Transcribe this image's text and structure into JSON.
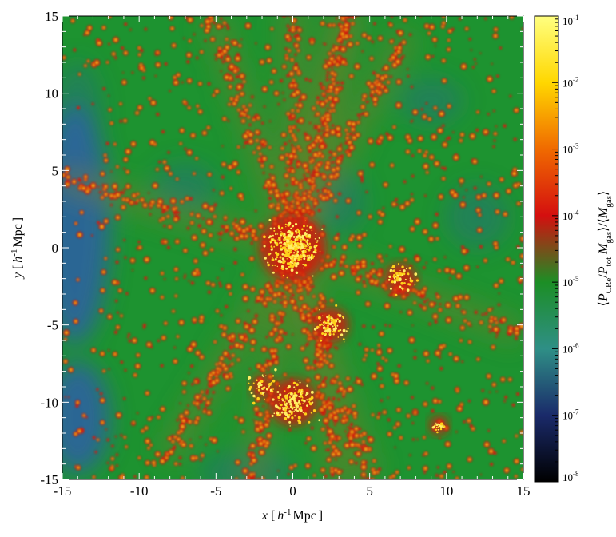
{
  "chart_data": {
    "type": "heatmap",
    "title": "",
    "xlabel": {
      "var": "x",
      "open": "[",
      "h": "h",
      "hsup": "-1",
      "unit": "Mpc",
      "close": "]"
    },
    "ylabel": {
      "var": "y",
      "open": "[",
      "h": "h",
      "hsup": "-1",
      "unit": "Mpc",
      "close": "]"
    },
    "xlim": [
      -15,
      15
    ],
    "ylim": [
      -15,
      15
    ],
    "xticks": [
      -15,
      -10,
      -5,
      0,
      5,
      10,
      15
    ],
    "yticks": [
      -15,
      -10,
      -5,
      0,
      5,
      10,
      15
    ],
    "xtick_labels": [
      "-15",
      "-10",
      "-5",
      "0",
      "5",
      "10",
      "15"
    ],
    "ytick_labels": [
      "-15",
      "-10",
      "-5",
      "0",
      "5",
      "10",
      "15"
    ],
    "colorbar": {
      "scale": "log",
      "range": [
        1e-08,
        0.1
      ],
      "ticks": [
        {
          "value": 0.1,
          "base": "10",
          "exp": "-1"
        },
        {
          "value": 0.01,
          "base": "10",
          "exp": "-2"
        },
        {
          "value": 0.001,
          "base": "10",
          "exp": "-3"
        },
        {
          "value": 0.0001,
          "base": "10",
          "exp": "-4"
        },
        {
          "value": 1e-05,
          "base": "10",
          "exp": "-5"
        },
        {
          "value": 1e-06,
          "base": "10",
          "exp": "-6"
        },
        {
          "value": 1e-07,
          "base": "10",
          "exp": "-7"
        },
        {
          "value": 1e-08,
          "base": "10",
          "exp": "-8"
        }
      ],
      "label_parts": [
        {
          "t": "⟨",
          "s": "n"
        },
        {
          "t": "P",
          "s": "i"
        },
        {
          "t": "CRe",
          "s": "sub"
        },
        {
          "t": "/",
          "s": "n"
        },
        {
          "t": "P",
          "s": "i"
        },
        {
          "t": "tot",
          "s": "sub"
        },
        {
          "t": " ",
          "s": "n"
        },
        {
          "t": "M",
          "s": "i"
        },
        {
          "t": "gas",
          "s": "sub"
        },
        {
          "t": "⟩/⟨",
          "s": "n"
        },
        {
          "t": "M",
          "s": "i"
        },
        {
          "t": "gas",
          "s": "sub"
        },
        {
          "t": "⟩",
          "s": "n"
        }
      ],
      "colors": [
        "#000000",
        "#1a2a6a",
        "#2f8f86",
        "#1c8e25",
        "#d40f0f",
        "#f06a00",
        "#ffd700",
        "#ffff80"
      ]
    },
    "field_levels": {
      "void": "#2d63a0",
      "background": "#1d9330",
      "filament": "#7f7b2a",
      "halo": "#cf1f10",
      "core": "#ffd21a"
    },
    "structures": {
      "center": [
        0,
        0
      ],
      "node_bottom": [
        0,
        -10
      ],
      "node_right": [
        7,
        -2
      ],
      "node_lower_right": [
        9.5,
        -11.5
      ],
      "void_left": [
        -14,
        0
      ]
    },
    "grid": false
  }
}
